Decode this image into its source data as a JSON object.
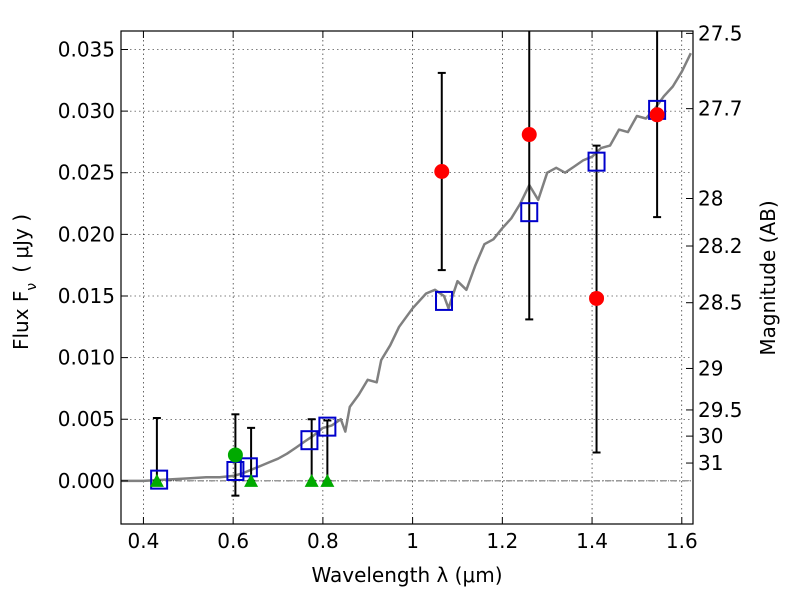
{
  "chart_data": {
    "type": "scatter",
    "xlabel": "Wavelength  λ (μm)",
    "ylabel": "Flux  F",
    "ylabel_sub": "ν",
    "ylabel_unit": "( μJy )",
    "y2label": "Magnitude (AB)",
    "xlim": [
      0.35,
      1.625
    ],
    "ylim": [
      -0.0035,
      0.0365
    ],
    "grid": true,
    "x_ticks": [
      {
        "v": 0.4,
        "label": "0.4"
      },
      {
        "v": 0.6,
        "label": "0.6"
      },
      {
        "v": 0.8,
        "label": "0.8"
      },
      {
        "v": 1.0,
        "label": "1"
      },
      {
        "v": 1.2,
        "label": "1.2"
      },
      {
        "v": 1.4,
        "label": "1.4"
      },
      {
        "v": 1.6,
        "label": "1.6"
      }
    ],
    "y_ticks": [
      {
        "v": 0.0,
        "label": "0.000"
      },
      {
        "v": 0.005,
        "label": "0.005"
      },
      {
        "v": 0.01,
        "label": "0.010"
      },
      {
        "v": 0.015,
        "label": "0.015"
      },
      {
        "v": 0.02,
        "label": "0.020"
      },
      {
        "v": 0.025,
        "label": "0.025"
      },
      {
        "v": 0.03,
        "label": "0.030"
      },
      {
        "v": 0.035,
        "label": "0.035"
      }
    ],
    "mag_ticks": [
      {
        "mag": 27.5,
        "label": "27.5"
      },
      {
        "mag": 27.7,
        "label": "27.7"
      },
      {
        "mag": 28.0,
        "label": "28"
      },
      {
        "mag": 28.2,
        "label": "28.2"
      },
      {
        "mag": 28.5,
        "label": "28.5"
      },
      {
        "mag": 29.0,
        "label": "29"
      },
      {
        "mag": 29.5,
        "label": "29.5"
      },
      {
        "mag": 30.0,
        "label": "30"
      },
      {
        "mag": 31.0,
        "label": "31"
      }
    ],
    "colors": {
      "model": "#808080",
      "observed": "#ff0000",
      "detection_low": "#00aa00",
      "model_box": "#0000cc",
      "errorbar": "#000000",
      "zero_line": "#333333"
    },
    "model_sed": {
      "x": [
        0.35,
        0.4,
        0.45,
        0.5,
        0.54,
        0.57,
        0.6,
        0.62,
        0.64,
        0.66,
        0.68,
        0.7,
        0.72,
        0.74,
        0.76,
        0.78,
        0.8,
        0.82,
        0.84,
        0.85,
        0.86,
        0.88,
        0.9,
        0.92,
        0.93,
        0.95,
        0.97,
        1.0,
        1.03,
        1.05,
        1.07,
        1.08,
        1.1,
        1.12,
        1.14,
        1.16,
        1.18,
        1.2,
        1.22,
        1.24,
        1.26,
        1.28,
        1.3,
        1.32,
        1.34,
        1.36,
        1.38,
        1.4,
        1.42,
        1.44,
        1.46,
        1.48,
        1.5,
        1.52,
        1.54,
        1.56,
        1.58,
        1.6,
        1.62
      ],
      "y": [
        0.0,
        0.0,
        0.0001,
        0.0002,
        0.0003,
        0.0003,
        0.0004,
        0.0006,
        0.0009,
        0.0012,
        0.0015,
        0.0018,
        0.0022,
        0.0027,
        0.0032,
        0.0037,
        0.0043,
        0.0045,
        0.005,
        0.004,
        0.006,
        0.007,
        0.0082,
        0.008,
        0.0098,
        0.011,
        0.0125,
        0.014,
        0.0152,
        0.0155,
        0.015,
        0.014,
        0.0162,
        0.0155,
        0.0175,
        0.0192,
        0.0196,
        0.0205,
        0.0213,
        0.0225,
        0.024,
        0.0228,
        0.025,
        0.0254,
        0.025,
        0.0255,
        0.026,
        0.0263,
        0.027,
        0.0272,
        0.0285,
        0.0283,
        0.0296,
        0.0294,
        0.0302,
        0.0312,
        0.032,
        0.0332,
        0.0347
      ]
    },
    "observed": [
      {
        "x": 1.065,
        "y": 0.0251,
        "err_lo": 0.0171,
        "err_hi": 0.0331
      },
      {
        "x": 1.26,
        "y": 0.0281,
        "err_lo": 0.0131,
        "err_hi": 0.0365
      },
      {
        "x": 1.41,
        "y": 0.0148,
        "err_lo": 0.0023,
        "err_hi": 0.0272
      },
      {
        "x": 1.545,
        "y": 0.0297,
        "err_lo": 0.0214,
        "err_hi": 0.0365
      }
    ],
    "low_detections": [
      {
        "x": 0.43,
        "y": 0.0,
        "err_lo": 0.0,
        "err_hi": 0.0051
      },
      {
        "x": 0.605,
        "y": 0.0021,
        "err_lo": -0.0012,
        "err_hi": 0.0054
      },
      {
        "x": 0.64,
        "y": 0.0,
        "err_lo": 0.0,
        "err_hi": 0.0043
      },
      {
        "x": 0.775,
        "y": 0.0,
        "err_lo": 0.0,
        "err_hi": 0.005
      },
      {
        "x": 0.81,
        "y": 0.0,
        "err_lo": 0.0,
        "err_hi": 0.0049
      }
    ],
    "model_photometry": [
      {
        "x": 0.435,
        "y": 0.0001
      },
      {
        "x": 0.605,
        "y": 0.0008
      },
      {
        "x": 0.635,
        "y": 0.0011
      },
      {
        "x": 0.77,
        "y": 0.0033
      },
      {
        "x": 0.81,
        "y": 0.0044
      },
      {
        "x": 1.07,
        "y": 0.0146
      },
      {
        "x": 1.26,
        "y": 0.0218
      },
      {
        "x": 1.41,
        "y": 0.0259
      },
      {
        "x": 1.545,
        "y": 0.0301
      }
    ]
  }
}
